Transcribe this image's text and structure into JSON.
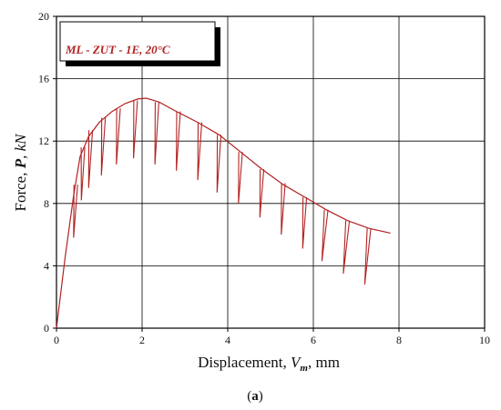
{
  "chart_data": {
    "type": "line",
    "title": "",
    "xlabel": {
      "prefix": "Displacement, ",
      "symbol": "V",
      "subscript": "m",
      "suffix": ", mm"
    },
    "ylabel": {
      "prefix": "Force, ",
      "symbol": "P",
      "suffix": ", kN"
    },
    "xlim": [
      0,
      10
    ],
    "ylim": [
      0,
      20
    ],
    "x_ticks": [
      "0",
      "2",
      "4",
      "6",
      "8",
      "10"
    ],
    "y_ticks": [
      "0",
      "4",
      "8",
      "12",
      "16",
      "20"
    ],
    "grid": true,
    "legend": {
      "placement": "top-left",
      "text": "ML - ZUT - 1E,  20°C"
    },
    "series": [
      {
        "name": "ML - ZUT - 1E,  20°C",
        "color": "#b22222",
        "envelope": {
          "x": [
            0,
            0.2,
            0.4,
            0.55,
            0.75,
            1.0,
            1.3,
            1.6,
            1.9,
            2.1,
            2.4,
            2.8,
            3.3,
            3.8,
            4.3,
            4.8,
            5.3,
            5.8,
            6.3,
            6.8,
            7.3,
            7.8
          ],
          "y": [
            0,
            4.5,
            8.5,
            11.0,
            12.3,
            13.2,
            13.9,
            14.4,
            14.7,
            14.75,
            14.5,
            13.9,
            13.2,
            12.4,
            11.3,
            10.2,
            9.2,
            8.4,
            7.6,
            6.9,
            6.4,
            6.1
          ]
        },
        "unloading_lines": [
          {
            "x_top": 0.45,
            "y_top": 9.2,
            "x_bot": 0.4,
            "y_bot": 5.8
          },
          {
            "x_top": 0.62,
            "y_top": 11.6,
            "x_bot": 0.58,
            "y_bot": 8.2
          },
          {
            "x_top": 0.8,
            "y_top": 12.7,
            "x_bot": 0.75,
            "y_bot": 9.0
          },
          {
            "x_top": 1.1,
            "y_top": 13.5,
            "x_bot": 1.05,
            "y_bot": 9.8
          },
          {
            "x_top": 1.45,
            "y_top": 14.1,
            "x_bot": 1.4,
            "y_bot": 10.5
          },
          {
            "x_top": 1.85,
            "y_top": 14.6,
            "x_bot": 1.8,
            "y_bot": 10.9
          },
          {
            "x_top": 2.35,
            "y_top": 14.5,
            "x_bot": 2.3,
            "y_bot": 10.5
          },
          {
            "x_top": 2.85,
            "y_top": 13.9,
            "x_bot": 2.8,
            "y_bot": 10.1
          },
          {
            "x_top": 3.35,
            "y_top": 13.2,
            "x_bot": 3.3,
            "y_bot": 9.5
          },
          {
            "x_top": 3.8,
            "y_top": 12.4,
            "x_bot": 3.75,
            "y_bot": 8.7
          },
          {
            "x_top": 4.3,
            "y_top": 11.3,
            "x_bot": 4.25,
            "y_bot": 8.0
          },
          {
            "x_top": 4.8,
            "y_top": 10.2,
            "x_bot": 4.75,
            "y_bot": 7.1
          },
          {
            "x_top": 5.3,
            "y_top": 9.3,
            "x_bot": 5.25,
            "y_bot": 6.0
          },
          {
            "x_top": 5.8,
            "y_top": 8.4,
            "x_bot": 5.75,
            "y_bot": 5.1
          },
          {
            "x_top": 6.3,
            "y_top": 7.6,
            "x_bot": 6.2,
            "y_bot": 4.3
          },
          {
            "x_top": 6.8,
            "y_top": 6.9,
            "x_bot": 6.7,
            "y_bot": 3.5
          },
          {
            "x_top": 7.3,
            "y_top": 6.4,
            "x_bot": 7.2,
            "y_bot": 2.8
          }
        ]
      }
    ]
  },
  "caption": {
    "open": "(",
    "letter": "a",
    "close": ")"
  }
}
